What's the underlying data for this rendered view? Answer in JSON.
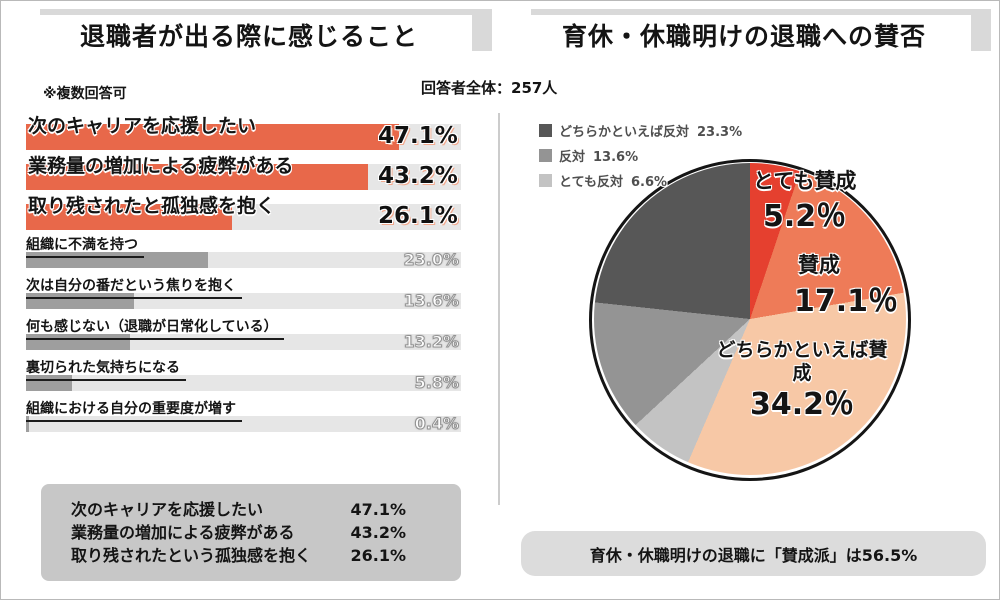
{
  "header": {
    "left_title": "退職者が出る際に感じること",
    "right_title": "育休・休職明けの退職への賛否",
    "note_multi": "※複数回答可",
    "respondents": "回答者全体：257人"
  },
  "chart_data": [
    {
      "type": "bar",
      "title": "退職者が出る際に感じること",
      "note": "※複数回答可",
      "orientation": "horizontal",
      "categories": [
        "次のキャリアを応援したい",
        "業務量の増加による疲弊がある",
        "取り残されたと孤独感を抱く",
        "組織に不満を持つ",
        "次は自分の番だという焦りを抱く",
        "何も感じない（退職が日常化している）",
        "裏切られた気持ちになる",
        "組織における自分の重要度が増す"
      ],
      "values": [
        47.1,
        43.2,
        26.1,
        23.0,
        13.6,
        13.2,
        5.8,
        0.4
      ],
      "unit": "%",
      "xlim": [
        0,
        55
      ],
      "highlight_count": 3,
      "highlight_color": "#e8684a",
      "bar_color": "#9e9e9e",
      "track_color": "#e6e6e6"
    },
    {
      "type": "pie",
      "title": "育休・休職明けの退職への賛否",
      "respondents": 257,
      "labels": [
        "とても賛成",
        "賛成",
        "どちらかといえば賛成",
        "とても反対",
        "反対",
        "どちらかといえば反対"
      ],
      "values": [
        5.2,
        17.1,
        34.2,
        6.6,
        13.6,
        23.3
      ],
      "colors": [
        "#e5402f",
        "#ee7b58",
        "#f7c8a6",
        "#c3c3c3",
        "#949494",
        "#575757"
      ],
      "start_angle": "top",
      "direction": "clockwise",
      "legend_position": "top-left",
      "note": "育休・休職明けの退職に「賛成派」は56.5%"
    }
  ],
  "bars": {
    "rows": [
      {
        "label": "次のキャリアを応援したい",
        "pct": "47.1%"
      },
      {
        "label": "業務量の増加による疲弊がある",
        "pct": "43.2%"
      },
      {
        "label": "取り残されたと孤独感を抱く",
        "pct": "26.1%"
      },
      {
        "label": "組織に不満を持つ",
        "pct": "23.0%"
      },
      {
        "label": "次は自分の番だという焦りを抱く",
        "pct": "13.6%"
      },
      {
        "label": "何も感じない（退職が日常化している）",
        "pct": "13.2%"
      },
      {
        "label": "裏切られた気持ちになる",
        "pct": "5.8%"
      },
      {
        "label": "組織における自分の重要度が増す",
        "pct": "0.4%"
      }
    ]
  },
  "summary": {
    "rows": [
      {
        "label": "次のキャリアを応援したい",
        "pct": "47.1%"
      },
      {
        "label": "業務量の増加による疲弊がある",
        "pct": "43.2%"
      },
      {
        "label": "取り残されたという孤独感を抱く",
        "pct": "26.1%"
      }
    ]
  },
  "legend": {
    "items": [
      {
        "label": "どちらかといえば反対",
        "pct": "23.3%",
        "color": "#575757"
      },
      {
        "label": "反対",
        "pct": "13.6%",
        "color": "#949494"
      },
      {
        "label": "とても反対",
        "pct": "6.6%",
        "color": "#c3c3c3"
      }
    ]
  },
  "pie_labels": [
    {
      "name": "とても賛成",
      "pct": "5.2％"
    },
    {
      "name": "賛成",
      "pct": "17.1％"
    },
    {
      "name": "どちらかといえば賛成",
      "pct": "34.2％"
    }
  ],
  "footer": {
    "note": "育休・休職明けの退職に「賛成派」は56.5%"
  }
}
